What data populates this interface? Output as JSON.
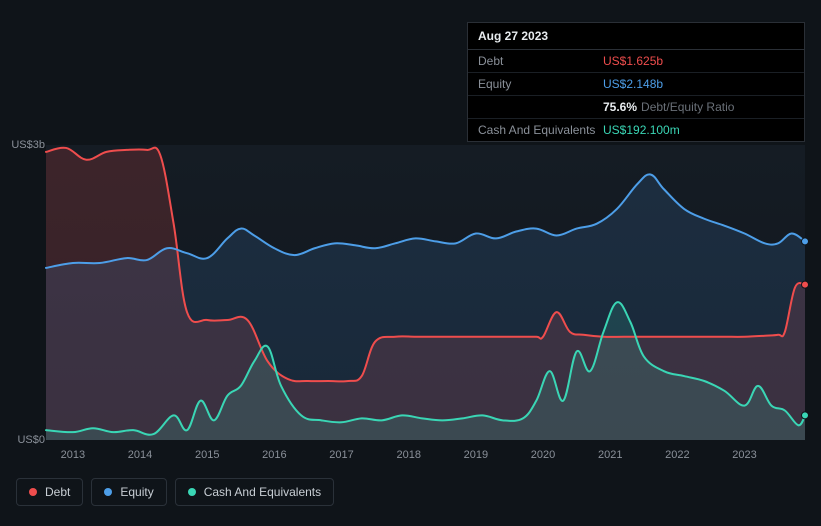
{
  "tooltip": {
    "date": "Aug 27 2023",
    "rows": [
      {
        "label": "Debt",
        "value": "US$1.625b",
        "cls": "debt"
      },
      {
        "label": "Equity",
        "value": "US$2.148b",
        "cls": "equity"
      },
      {
        "label": "",
        "ratio_value": "75.6%",
        "ratio_label": "Debt/Equity Ratio"
      },
      {
        "label": "Cash And Equivalents",
        "value": "US$192.100m",
        "cls": "cash"
      }
    ]
  },
  "chart": {
    "type": "area-line",
    "background_gradient": [
      "#151c24",
      "#10161d"
    ],
    "grid_color": "#1f2730",
    "y_axis": {
      "min": 0,
      "max": 3.0,
      "labels": [
        {
          "v": 3.0,
          "text": "US$3b"
        },
        {
          "v": 0.0,
          "text": "US$0"
        }
      ]
    },
    "x_axis": {
      "min": 2012.6,
      "max": 2023.9,
      "ticks": [
        2013,
        2014,
        2015,
        2016,
        2017,
        2018,
        2019,
        2020,
        2021,
        2022,
        2023
      ]
    },
    "series": [
      {
        "name": "Debt",
        "color": "#ef4d4d",
        "fill": "rgba(239,77,77,0.18)",
        "line_width": 2,
        "points": [
          [
            2012.6,
            2.93
          ],
          [
            2012.9,
            2.97
          ],
          [
            2013.2,
            2.85
          ],
          [
            2013.5,
            2.93
          ],
          [
            2013.8,
            2.95
          ],
          [
            2014.1,
            2.95
          ],
          [
            2014.3,
            2.9
          ],
          [
            2014.5,
            2.2
          ],
          [
            2014.7,
            1.3
          ],
          [
            2015.0,
            1.22
          ],
          [
            2015.3,
            1.22
          ],
          [
            2015.6,
            1.22
          ],
          [
            2015.9,
            0.8
          ],
          [
            2016.2,
            0.62
          ],
          [
            2016.5,
            0.6
          ],
          [
            2016.8,
            0.6
          ],
          [
            2017.1,
            0.6
          ],
          [
            2017.3,
            0.65
          ],
          [
            2017.5,
            1.0
          ],
          [
            2017.8,
            1.05
          ],
          [
            2018.1,
            1.05
          ],
          [
            2018.4,
            1.05
          ],
          [
            2018.7,
            1.05
          ],
          [
            2019.0,
            1.05
          ],
          [
            2019.3,
            1.05
          ],
          [
            2019.6,
            1.05
          ],
          [
            2019.9,
            1.05
          ],
          [
            2020.0,
            1.05
          ],
          [
            2020.2,
            1.3
          ],
          [
            2020.4,
            1.1
          ],
          [
            2020.6,
            1.07
          ],
          [
            2020.9,
            1.05
          ],
          [
            2021.2,
            1.05
          ],
          [
            2021.5,
            1.05
          ],
          [
            2021.8,
            1.05
          ],
          [
            2022.1,
            1.05
          ],
          [
            2022.4,
            1.05
          ],
          [
            2022.7,
            1.05
          ],
          [
            2023.0,
            1.05
          ],
          [
            2023.3,
            1.06
          ],
          [
            2023.5,
            1.07
          ],
          [
            2023.6,
            1.1
          ],
          [
            2023.75,
            1.55
          ],
          [
            2023.9,
            1.58
          ]
        ]
      },
      {
        "name": "Equity",
        "color": "#4d9ee8",
        "fill": "rgba(77,158,232,0.14)",
        "line_width": 2,
        "points": [
          [
            2012.6,
            1.75
          ],
          [
            2013.0,
            1.8
          ],
          [
            2013.4,
            1.8
          ],
          [
            2013.8,
            1.85
          ],
          [
            2014.1,
            1.83
          ],
          [
            2014.4,
            1.95
          ],
          [
            2014.7,
            1.9
          ],
          [
            2015.0,
            1.85
          ],
          [
            2015.3,
            2.05
          ],
          [
            2015.5,
            2.15
          ],
          [
            2015.7,
            2.08
          ],
          [
            2016.0,
            1.95
          ],
          [
            2016.3,
            1.88
          ],
          [
            2016.6,
            1.95
          ],
          [
            2016.9,
            2.0
          ],
          [
            2017.2,
            1.98
          ],
          [
            2017.5,
            1.95
          ],
          [
            2017.8,
            2.0
          ],
          [
            2018.1,
            2.05
          ],
          [
            2018.4,
            2.02
          ],
          [
            2018.7,
            2.0
          ],
          [
            2019.0,
            2.1
          ],
          [
            2019.3,
            2.05
          ],
          [
            2019.6,
            2.12
          ],
          [
            2019.9,
            2.15
          ],
          [
            2020.2,
            2.08
          ],
          [
            2020.5,
            2.15
          ],
          [
            2020.8,
            2.2
          ],
          [
            2021.1,
            2.35
          ],
          [
            2021.4,
            2.6
          ],
          [
            2021.6,
            2.7
          ],
          [
            2021.8,
            2.55
          ],
          [
            2022.1,
            2.35
          ],
          [
            2022.4,
            2.25
          ],
          [
            2022.7,
            2.18
          ],
          [
            2023.0,
            2.1
          ],
          [
            2023.3,
            2.0
          ],
          [
            2023.5,
            2.0
          ],
          [
            2023.7,
            2.1
          ],
          [
            2023.9,
            2.02
          ]
        ]
      },
      {
        "name": "Cash And Equivalents",
        "color": "#3ad6b5",
        "fill": "rgba(58,214,181,0.15)",
        "line_width": 2,
        "points": [
          [
            2012.6,
            0.1
          ],
          [
            2013.0,
            0.08
          ],
          [
            2013.3,
            0.12
          ],
          [
            2013.6,
            0.08
          ],
          [
            2013.9,
            0.1
          ],
          [
            2014.2,
            0.06
          ],
          [
            2014.5,
            0.25
          ],
          [
            2014.7,
            0.1
          ],
          [
            2014.9,
            0.4
          ],
          [
            2015.1,
            0.2
          ],
          [
            2015.3,
            0.45
          ],
          [
            2015.5,
            0.55
          ],
          [
            2015.7,
            0.8
          ],
          [
            2015.9,
            0.95
          ],
          [
            2016.1,
            0.55
          ],
          [
            2016.4,
            0.25
          ],
          [
            2016.7,
            0.2
          ],
          [
            2017.0,
            0.18
          ],
          [
            2017.3,
            0.22
          ],
          [
            2017.6,
            0.2
          ],
          [
            2017.9,
            0.25
          ],
          [
            2018.2,
            0.22
          ],
          [
            2018.5,
            0.2
          ],
          [
            2018.8,
            0.22
          ],
          [
            2019.1,
            0.25
          ],
          [
            2019.4,
            0.2
          ],
          [
            2019.7,
            0.22
          ],
          [
            2019.9,
            0.4
          ],
          [
            2020.1,
            0.7
          ],
          [
            2020.3,
            0.4
          ],
          [
            2020.5,
            0.9
          ],
          [
            2020.7,
            0.7
          ],
          [
            2020.9,
            1.1
          ],
          [
            2021.1,
            1.4
          ],
          [
            2021.3,
            1.2
          ],
          [
            2021.5,
            0.85
          ],
          [
            2021.8,
            0.7
          ],
          [
            2022.1,
            0.65
          ],
          [
            2022.4,
            0.6
          ],
          [
            2022.7,
            0.5
          ],
          [
            2023.0,
            0.35
          ],
          [
            2023.2,
            0.55
          ],
          [
            2023.4,
            0.35
          ],
          [
            2023.6,
            0.3
          ],
          [
            2023.8,
            0.15
          ],
          [
            2023.9,
            0.25
          ]
        ]
      }
    ],
    "end_markers": true
  },
  "legend": {
    "items": [
      {
        "label": "Debt",
        "color": "#ef4d4d"
      },
      {
        "label": "Equity",
        "color": "#4d9ee8"
      },
      {
        "label": "Cash And Equivalents",
        "color": "#3ad6b5"
      }
    ]
  }
}
